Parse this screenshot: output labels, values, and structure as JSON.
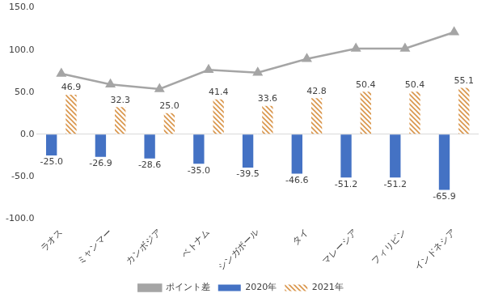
{
  "chart_data": {
    "type": "bar",
    "categories": [
      "ラオス",
      "ミャンマー",
      "カンボジア",
      "ベトナム",
      "シンガポール",
      "タイ",
      "マレーシア",
      "フィリピン",
      "インドネシア"
    ],
    "series": [
      {
        "name": "2020年",
        "type": "bar",
        "color": "#4472c4",
        "data_labels": true,
        "values": [
          -25.0,
          -26.9,
          -28.6,
          -35.0,
          -39.5,
          -46.6,
          -51.2,
          -51.2,
          -65.9
        ],
        "value_labels": [
          "-25.0",
          "-26.9",
          "-28.6",
          "-35.0",
          "-39.5",
          "-46.6",
          "-51.2",
          "-51.2",
          "-65.9"
        ]
      },
      {
        "name": "2021年",
        "type": "bar",
        "color": "#d9954a",
        "data_labels": true,
        "values": [
          46.9,
          32.3,
          25.0,
          41.4,
          33.6,
          42.8,
          50.4,
          50.4,
          55.1
        ],
        "value_labels": [
          "46.9",
          "32.3",
          "25.0",
          "41.4",
          "33.6",
          "42.8",
          "50.4",
          "50.4",
          "55.1"
        ]
      },
      {
        "name": "ポイント差",
        "type": "line",
        "color": "#a5a5a5",
        "marker": "triangle",
        "data_labels": false,
        "values": [
          71.9,
          59.2,
          53.6,
          76.4,
          73.1,
          89.4,
          101.6,
          101.6,
          121.0
        ]
      }
    ],
    "ylim": [
      -100,
      150
    ],
    "yticks": [
      {
        "value": -100,
        "label": "-100.0"
      },
      {
        "value": -50,
        "label": "-50.0"
      },
      {
        "value": 0,
        "label": "0.0"
      },
      {
        "value": 50,
        "label": "50.0"
      },
      {
        "value": 100,
        "label": "100.0"
      },
      {
        "value": 150,
        "label": "150.0"
      }
    ],
    "grid": false,
    "legend": "bottom"
  }
}
